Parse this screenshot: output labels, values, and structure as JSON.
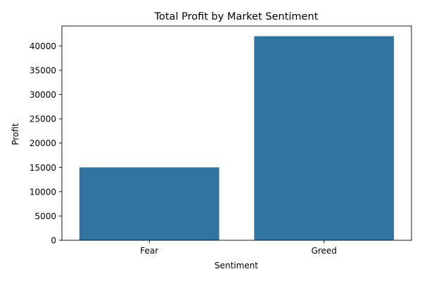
{
  "chart_data": {
    "type": "bar",
    "title": "Total Profit by Market Sentiment",
    "xlabel": "Sentiment",
    "ylabel": "Profit",
    "categories": [
      "Fear",
      "Greed"
    ],
    "values": [
      15000,
      42000
    ],
    "ylim": [
      0,
      44100
    ],
    "yticks": [
      0,
      5000,
      10000,
      15000,
      20000,
      25000,
      30000,
      35000,
      40000
    ],
    "ytick_labels": [
      "0",
      "5000",
      "10000",
      "15000",
      "20000",
      "25000",
      "30000",
      "35000",
      "40000"
    ],
    "grid": false,
    "legend": "none",
    "bar_color": "#3274a1"
  }
}
